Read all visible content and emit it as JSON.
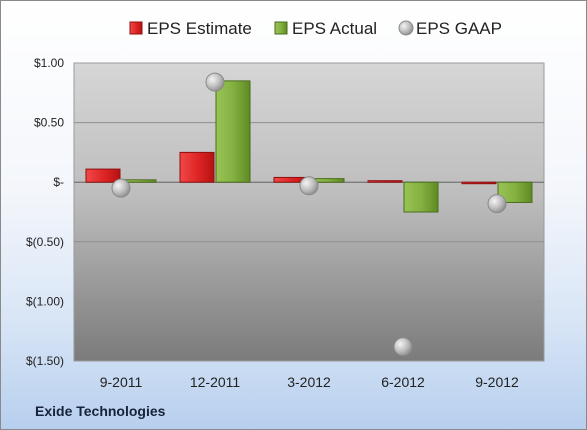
{
  "company_label": "Exide Technologies",
  "chart_data": {
    "type": "bar",
    "categories": [
      "9-2011",
      "12-2011",
      "3-2012",
      "6-2012",
      "9-2012"
    ],
    "series": [
      {
        "name": "EPS Estimate",
        "kind": "bar",
        "color": "#d42020",
        "values": [
          0.11,
          0.25,
          0.04,
          0.0,
          -0.01
        ]
      },
      {
        "name": "EPS Actual",
        "kind": "bar",
        "color": "#7faa38",
        "values": [
          0.02,
          0.85,
          0.03,
          -0.25,
          -0.17
        ]
      },
      {
        "name": "EPS GAAP",
        "kind": "point",
        "color": "#b9b9b9",
        "values": [
          -0.05,
          0.84,
          -0.03,
          -1.38,
          -0.18
        ]
      }
    ],
    "yticks": [
      {
        "value": 1.0,
        "label": "$1.00"
      },
      {
        "value": 0.5,
        "label": "$0.50"
      },
      {
        "value": 0.0,
        "label": "$-"
      },
      {
        "value": -0.5,
        "label": "$(0.50)"
      },
      {
        "value": -1.0,
        "label": "$(1.00)"
      },
      {
        "value": -1.5,
        "label": "$(1.50)"
      }
    ],
    "ylim": [
      -1.5,
      1.0
    ],
    "grid": true,
    "legend_position": "top"
  }
}
